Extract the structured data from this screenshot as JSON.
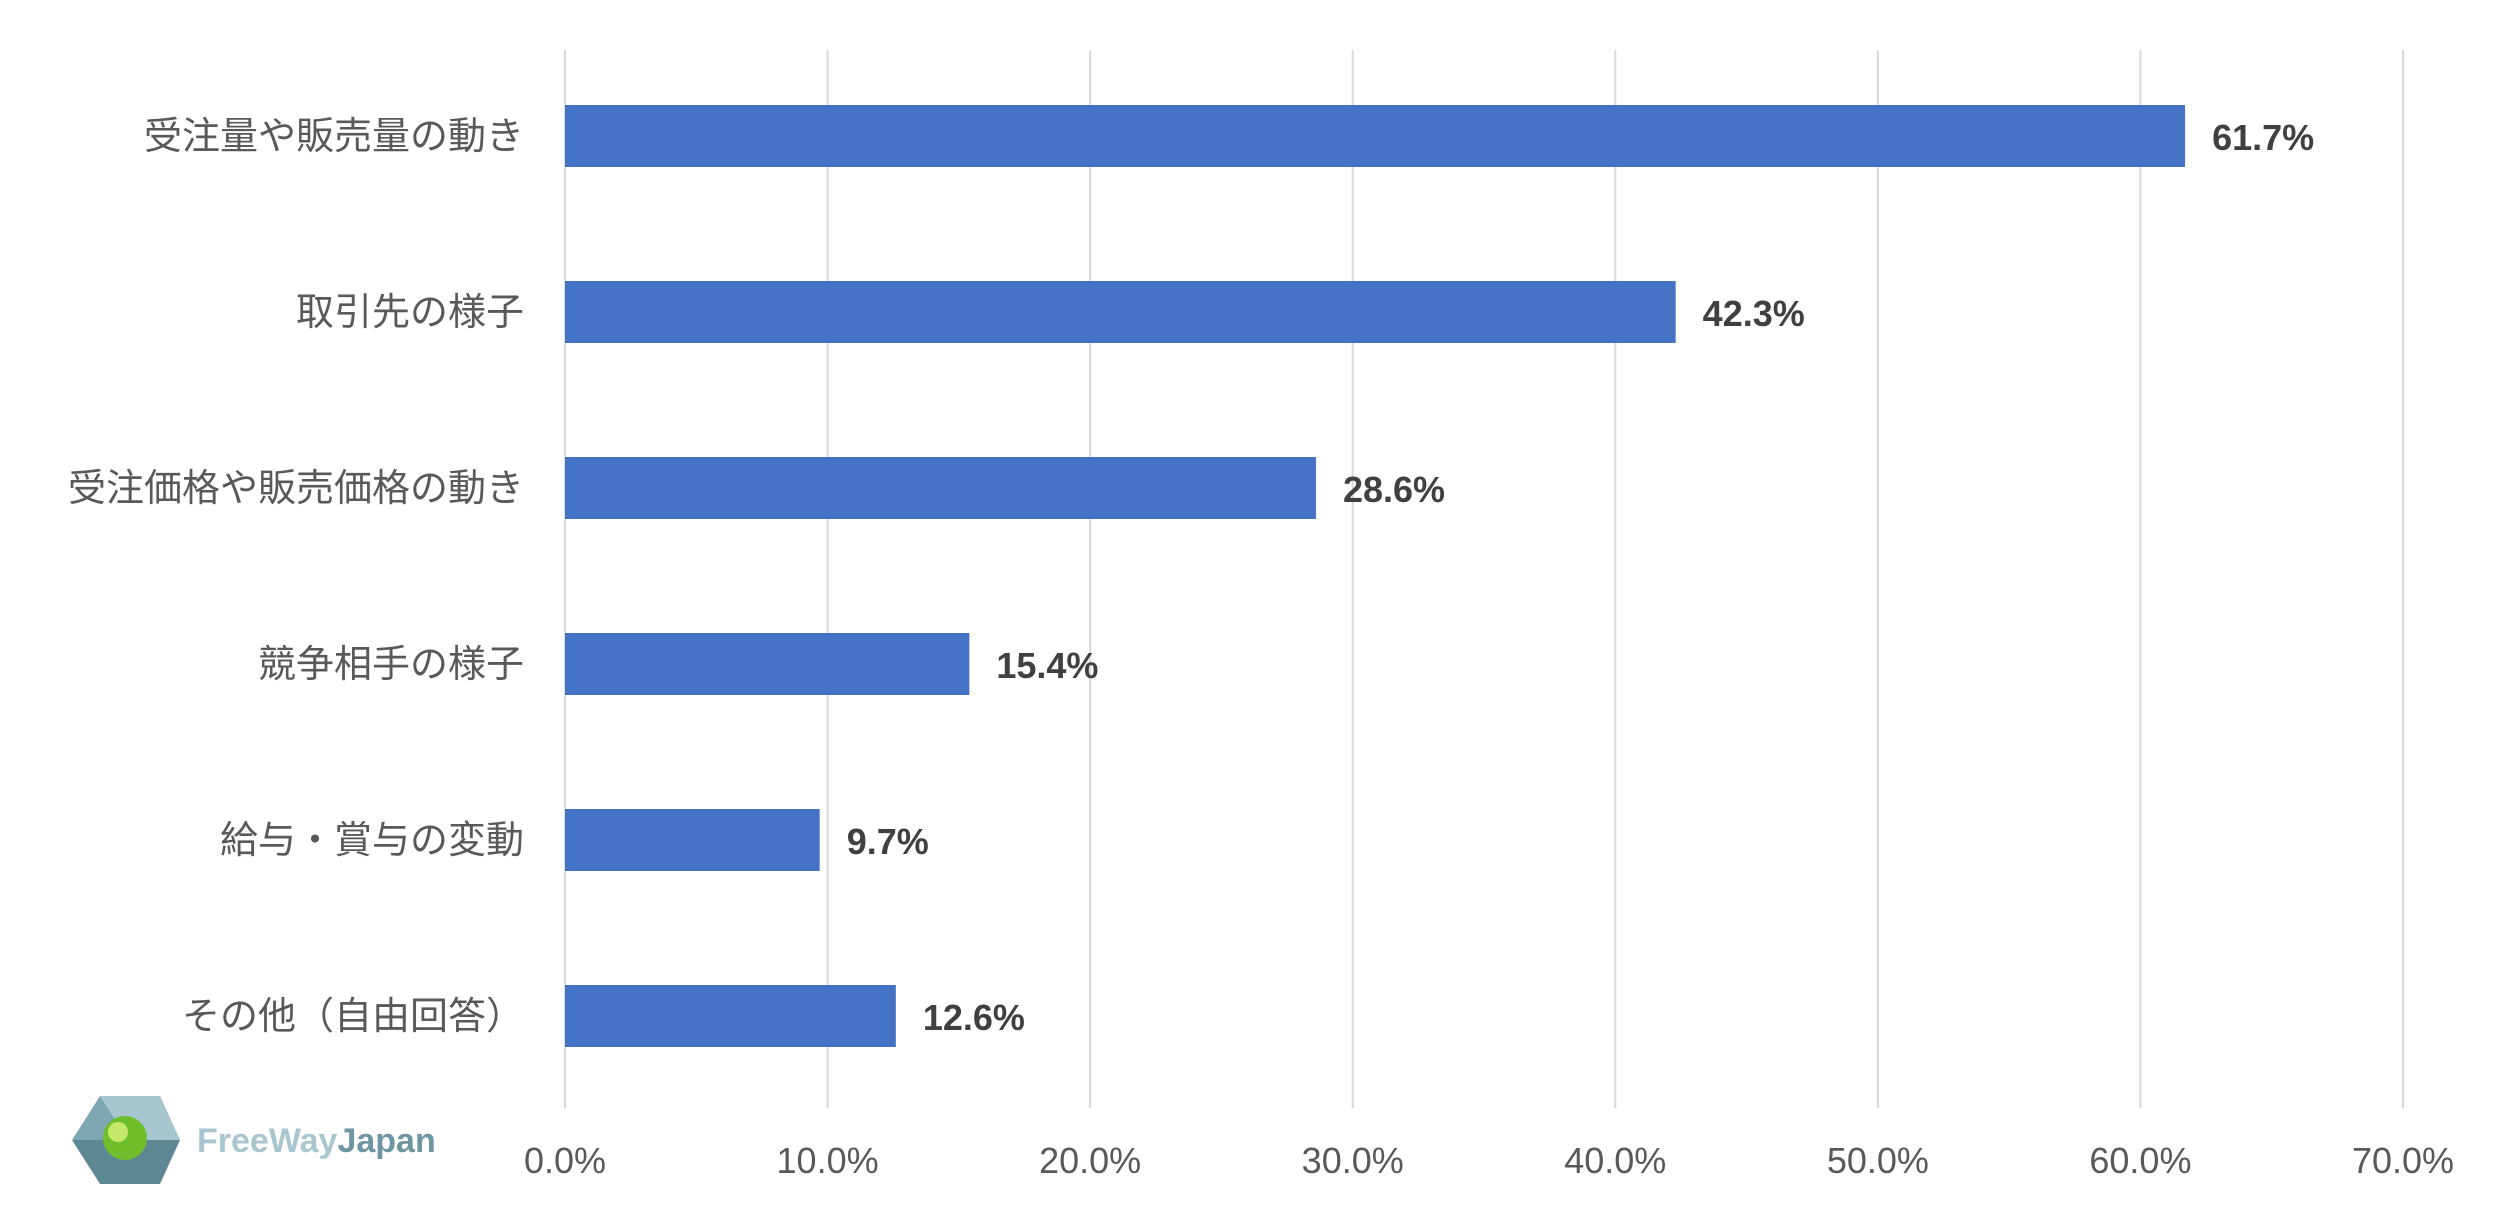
{
  "chart_data": {
    "type": "bar",
    "orientation": "horizontal",
    "categories": [
      "受注量や販売量の動き",
      "取引先の様子",
      "受注価格や販売価格の動き",
      "競争相手の様子",
      "給与・賞与の変動",
      "その他（自由回答）"
    ],
    "values": [
      61.7,
      42.3,
      28.6,
      15.4,
      9.7,
      12.6
    ],
    "data_labels": [
      "61.7%",
      "42.3%",
      "28.6%",
      "15.4%",
      "9.7%",
      "12.6%"
    ],
    "xlim": [
      0,
      70
    ],
    "x_ticks": [
      0,
      10,
      20,
      30,
      40,
      50,
      60,
      70
    ],
    "x_tick_labels": [
      "0.0%",
      "10.0%",
      "20.0%",
      "30.0%",
      "40.0%",
      "50.0%",
      "60.0%",
      "70.0%"
    ],
    "grid": "vertical",
    "legend": "none",
    "bar_color": "#4472C4",
    "grid_color": "#D9D9D9",
    "title": "",
    "xlabel": "",
    "ylabel": ""
  },
  "logo": {
    "text_part1": "FreeWay",
    "text_part2": "Japan",
    "color_part1": "#A9C6D0",
    "color_part2": "#6E95A2"
  }
}
